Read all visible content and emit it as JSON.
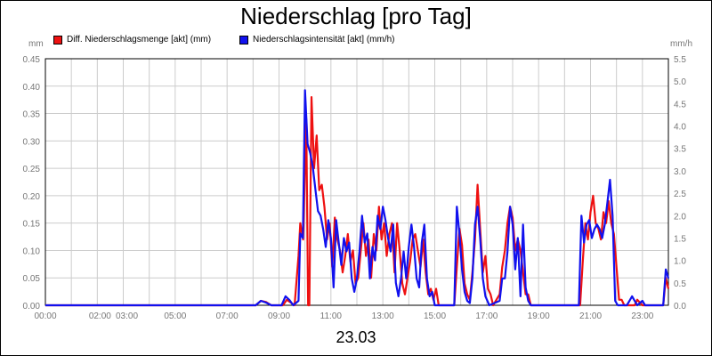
{
  "chart_data": {
    "type": "line",
    "title": "Niederschlag [pro Tag]",
    "date_label": "23.03",
    "x_tick_labels": [
      "00:00",
      "02:00",
      "03:00",
      "05:00",
      "07:00",
      "09:00",
      "11:00",
      "13:00",
      "15:00",
      "17:00",
      "19:00",
      "21:00",
      "23:00"
    ],
    "x_tick_hours": [
      0,
      2,
      3,
      5,
      7,
      9,
      11,
      13,
      15,
      17,
      19,
      21,
      23
    ],
    "xlim": [
      0,
      24
    ],
    "y_left": {
      "unit": "mm",
      "ylim": [
        0,
        0.45
      ],
      "ticks": [
        "0.00",
        "0.05",
        "0.10",
        "0.15",
        "0.20",
        "0.25",
        "0.30",
        "0.35",
        "0.40",
        "0.45"
      ]
    },
    "y_right": {
      "unit": "mm/h",
      "ylim": [
        0,
        5.5
      ],
      "ticks": [
        "0.0",
        "0.5",
        "1.0",
        "1.5",
        "2.0",
        "2.5",
        "3.0",
        "3.5",
        "4.0",
        "4.5",
        "5.0",
        "5.5"
      ]
    },
    "grid": true,
    "series": [
      {
        "name": "Diff. Niederschlagsmenge [akt] (mm)",
        "axis": "left",
        "color": "#ee1111",
        "points": [
          [
            0,
            0
          ],
          [
            8.1,
            0
          ],
          [
            8.3,
            0.008
          ],
          [
            8.5,
            0.006
          ],
          [
            8.7,
            0
          ],
          [
            9.15,
            0
          ],
          [
            9.3,
            0.01
          ],
          [
            9.45,
            0.005
          ],
          [
            9.6,
            0
          ],
          [
            9.75,
            0.09
          ],
          [
            9.82,
            0.15
          ],
          [
            9.93,
            0.12
          ],
          [
            10.05,
            0.34
          ],
          [
            10.12,
            0
          ],
          [
            10.17,
            0
          ],
          [
            10.25,
            0.38
          ],
          [
            10.35,
            0.25
          ],
          [
            10.45,
            0.31
          ],
          [
            10.55,
            0.21
          ],
          [
            10.65,
            0.22
          ],
          [
            10.75,
            0.18
          ],
          [
            10.85,
            0.12
          ],
          [
            10.95,
            0.15
          ],
          [
            11.05,
            0.07
          ],
          [
            11.15,
            0.16
          ],
          [
            11.25,
            0.12
          ],
          [
            11.35,
            0.1
          ],
          [
            11.45,
            0.06
          ],
          [
            11.55,
            0.09
          ],
          [
            11.65,
            0.13
          ],
          [
            11.75,
            0.08
          ],
          [
            11.85,
            0.1
          ],
          [
            11.95,
            0.04
          ],
          [
            12.05,
            0.05
          ],
          [
            12.15,
            0.1
          ],
          [
            12.25,
            0.15
          ],
          [
            12.35,
            0.09
          ],
          [
            12.45,
            0.12
          ],
          [
            12.55,
            0.05
          ],
          [
            12.65,
            0.13
          ],
          [
            12.75,
            0.1
          ],
          [
            12.85,
            0.18
          ],
          [
            12.95,
            0.12
          ],
          [
            13.05,
            0.15
          ],
          [
            13.15,
            0.09
          ],
          [
            13.25,
            0.13
          ],
          [
            13.35,
            0.15
          ],
          [
            13.45,
            0.06
          ],
          [
            13.55,
            0.15
          ],
          [
            13.65,
            0.1
          ],
          [
            13.75,
            0.04
          ],
          [
            13.85,
            0.02
          ],
          [
            13.95,
            0.05
          ],
          [
            14.05,
            0.08
          ],
          [
            14.15,
            0.12
          ],
          [
            14.25,
            0.13
          ],
          [
            14.35,
            0.1
          ],
          [
            14.45,
            0.07
          ],
          [
            14.55,
            0.12
          ],
          [
            14.65,
            0.06
          ],
          [
            14.75,
            0.02
          ],
          [
            14.85,
            0.03
          ],
          [
            14.95,
            0.01
          ],
          [
            15.05,
            0.03
          ],
          [
            15.15,
            0
          ],
          [
            15.75,
            0
          ],
          [
            15.85,
            0.07
          ],
          [
            15.95,
            0.14
          ],
          [
            16.05,
            0.11
          ],
          [
            16.15,
            0.04
          ],
          [
            16.25,
            0.02
          ],
          [
            16.35,
            0.01
          ],
          [
            16.45,
            0.06
          ],
          [
            16.55,
            0.12
          ],
          [
            16.65,
            0.22
          ],
          [
            16.75,
            0.14
          ],
          [
            16.85,
            0.06
          ],
          [
            16.95,
            0.09
          ],
          [
            17.05,
            0.03
          ],
          [
            17.15,
            0.02
          ],
          [
            17.25,
            0
          ],
          [
            17.5,
            0.02
          ],
          [
            17.6,
            0.07
          ],
          [
            17.7,
            0.1
          ],
          [
            17.8,
            0.15
          ],
          [
            17.9,
            0.18
          ],
          [
            18.0,
            0.16
          ],
          [
            18.1,
            0.1
          ],
          [
            18.2,
            0.12
          ],
          [
            18.3,
            0.1
          ],
          [
            18.4,
            0.06
          ],
          [
            18.5,
            0.02
          ],
          [
            18.6,
            0.02
          ],
          [
            18.7,
            0
          ],
          [
            20.6,
            0
          ],
          [
            20.7,
            0.08
          ],
          [
            20.8,
            0.15
          ],
          [
            20.9,
            0.12
          ],
          [
            21.0,
            0.17
          ],
          [
            21.1,
            0.2
          ],
          [
            21.2,
            0.15
          ],
          [
            21.3,
            0.14
          ],
          [
            21.4,
            0.12
          ],
          [
            21.5,
            0.17
          ],
          [
            21.6,
            0.15
          ],
          [
            21.7,
            0.19
          ],
          [
            21.8,
            0.15
          ],
          [
            21.9,
            0.13
          ],
          [
            22.0,
            0.07
          ],
          [
            22.1,
            0.01
          ],
          [
            22.2,
            0.01
          ],
          [
            22.3,
            0
          ],
          [
            22.7,
            0
          ],
          [
            22.8,
            0.01
          ],
          [
            22.9,
            0.005
          ],
          [
            23.0,
            0
          ],
          [
            23.8,
            0
          ],
          [
            23.9,
            0.05
          ],
          [
            24.0,
            0.03
          ]
        ]
      },
      {
        "name": "Niederschlagsintensität [akt] (mm/h)",
        "axis": "right",
        "color": "#1111ee",
        "points": [
          [
            0,
            0
          ],
          [
            8.1,
            0
          ],
          [
            8.3,
            0.1
          ],
          [
            8.5,
            0.06
          ],
          [
            8.7,
            0
          ],
          [
            9.1,
            0
          ],
          [
            9.25,
            0.2
          ],
          [
            9.4,
            0.12
          ],
          [
            9.55,
            0
          ],
          [
            9.75,
            0.1
          ],
          [
            9.82,
            1.6
          ],
          [
            9.92,
            1.5
          ],
          [
            10.0,
            4.8
          ],
          [
            10.1,
            3.6
          ],
          [
            10.2,
            3.4
          ],
          [
            10.3,
            3.1
          ],
          [
            10.4,
            2.6
          ],
          [
            10.5,
            2.1
          ],
          [
            10.6,
            2.0
          ],
          [
            10.7,
            1.7
          ],
          [
            10.8,
            1.3
          ],
          [
            10.9,
            1.9
          ],
          [
            11.0,
            1.5
          ],
          [
            11.1,
            0.4
          ],
          [
            11.2,
            1.9
          ],
          [
            11.3,
            1.4
          ],
          [
            11.4,
            0.9
          ],
          [
            11.5,
            1.5
          ],
          [
            11.6,
            1.2
          ],
          [
            11.7,
            1.4
          ],
          [
            11.8,
            0.6
          ],
          [
            11.9,
            0.3
          ],
          [
            12.0,
            0.6
          ],
          [
            12.1,
            1.2
          ],
          [
            12.2,
            2.0
          ],
          [
            12.3,
            1.4
          ],
          [
            12.4,
            1.6
          ],
          [
            12.5,
            0.6
          ],
          [
            12.6,
            1.3
          ],
          [
            12.7,
            1.0
          ],
          [
            12.8,
            2.0
          ],
          [
            12.9,
            1.7
          ],
          [
            13.0,
            2.2
          ],
          [
            13.1,
            1.9
          ],
          [
            13.2,
            1.5
          ],
          [
            13.3,
            1.2
          ],
          [
            13.4,
            1.8
          ],
          [
            13.5,
            0.5
          ],
          [
            13.6,
            0.2
          ],
          [
            13.7,
            0.6
          ],
          [
            13.8,
            1.2
          ],
          [
            13.9,
            0.6
          ],
          [
            14.0,
            1.3
          ],
          [
            14.1,
            1.8
          ],
          [
            14.2,
            1.3
          ],
          [
            14.3,
            0.6
          ],
          [
            14.4,
            0.4
          ],
          [
            14.5,
            1.4
          ],
          [
            14.6,
            1.8
          ],
          [
            14.7,
            0.6
          ],
          [
            14.8,
            0.2
          ],
          [
            14.9,
            0.3
          ],
          [
            15.0,
            0
          ],
          [
            15.75,
            0
          ],
          [
            15.85,
            2.2
          ],
          [
            15.95,
            1.6
          ],
          [
            16.05,
            0.8
          ],
          [
            16.15,
            0.3
          ],
          [
            16.25,
            0.1
          ],
          [
            16.35,
            0.05
          ],
          [
            16.45,
            0.6
          ],
          [
            16.55,
            1.8
          ],
          [
            16.65,
            2.2
          ],
          [
            16.75,
            1.5
          ],
          [
            16.85,
            0.6
          ],
          [
            16.95,
            0.2
          ],
          [
            17.1,
            0
          ],
          [
            17.5,
            0.1
          ],
          [
            17.6,
            0.6
          ],
          [
            17.7,
            0.6
          ],
          [
            17.8,
            1.2
          ],
          [
            17.9,
            2.2
          ],
          [
            18.0,
            1.8
          ],
          [
            18.1,
            0.8
          ],
          [
            18.2,
            1.5
          ],
          [
            18.3,
            0.2
          ],
          [
            18.4,
            1.8
          ],
          [
            18.5,
            0.4
          ],
          [
            18.6,
            0.1
          ],
          [
            18.7,
            0
          ],
          [
            20.55,
            0
          ],
          [
            20.65,
            2.0
          ],
          [
            20.75,
            1.4
          ],
          [
            20.85,
            1.8
          ],
          [
            20.95,
            1.9
          ],
          [
            21.05,
            1.5
          ],
          [
            21.15,
            1.7
          ],
          [
            21.25,
            1.8
          ],
          [
            21.35,
            1.7
          ],
          [
            21.45,
            1.5
          ],
          [
            21.55,
            1.8
          ],
          [
            21.65,
            2.3
          ],
          [
            21.75,
            2.8
          ],
          [
            21.85,
            2.0
          ],
          [
            21.95,
            0.1
          ],
          [
            22.05,
            0
          ],
          [
            22.4,
            0
          ],
          [
            22.5,
            0.1
          ],
          [
            22.6,
            0.2
          ],
          [
            22.7,
            0.1
          ],
          [
            22.8,
            0
          ],
          [
            23.0,
            0.1
          ],
          [
            23.1,
            0
          ],
          [
            23.8,
            0
          ],
          [
            23.9,
            0.8
          ],
          [
            24.0,
            0.6
          ]
        ]
      }
    ]
  }
}
